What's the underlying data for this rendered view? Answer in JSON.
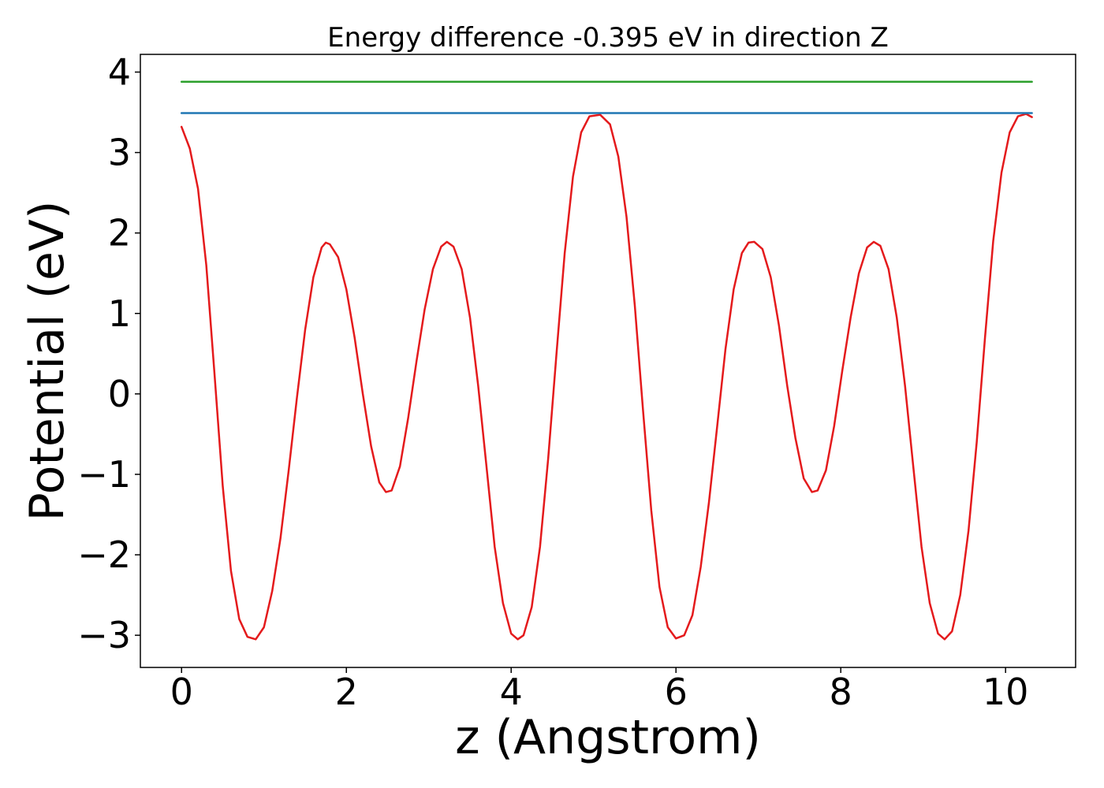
{
  "chart_data": {
    "type": "line",
    "title": "Energy difference -0.395 eV in direction Z",
    "xlabel": "z (Angstrom)",
    "ylabel": "Potential (eV)",
    "xlim": [
      -0.5,
      10.85
    ],
    "ylim": [
      -3.4,
      4.22
    ],
    "grid": false,
    "x_ticks": [
      0,
      2,
      4,
      6,
      8,
      10
    ],
    "x_tick_labels": [
      "0",
      "2",
      "4",
      "6",
      "8",
      "10"
    ],
    "y_ticks": [
      -3,
      -2,
      -1,
      0,
      1,
      2,
      3,
      4
    ],
    "y_tick_labels": [
      "−3",
      "−2",
      "−1",
      "0",
      "1",
      "2",
      "3",
      "4"
    ],
    "series": [
      {
        "color": "#e41a1c",
        "points": [
          [
            0.0,
            3.32
          ],
          [
            0.1,
            3.05
          ],
          [
            0.2,
            2.55
          ],
          [
            0.3,
            1.6
          ],
          [
            0.4,
            0.25
          ],
          [
            0.5,
            -1.15
          ],
          [
            0.6,
            -2.2
          ],
          [
            0.7,
            -2.8
          ],
          [
            0.8,
            -3.02
          ],
          [
            0.9,
            -3.05
          ],
          [
            1.0,
            -2.9
          ],
          [
            1.1,
            -2.45
          ],
          [
            1.2,
            -1.8
          ],
          [
            1.3,
            -0.95
          ],
          [
            1.4,
            -0.05
          ],
          [
            1.5,
            0.8
          ],
          [
            1.6,
            1.45
          ],
          [
            1.7,
            1.82
          ],
          [
            1.75,
            1.88
          ],
          [
            1.8,
            1.86
          ],
          [
            1.9,
            1.7
          ],
          [
            2.0,
            1.3
          ],
          [
            2.1,
            0.7
          ],
          [
            2.2,
            0.0
          ],
          [
            2.3,
            -0.65
          ],
          [
            2.4,
            -1.1
          ],
          [
            2.48,
            -1.22
          ],
          [
            2.55,
            -1.2
          ],
          [
            2.65,
            -0.9
          ],
          [
            2.75,
            -0.3
          ],
          [
            2.85,
            0.4
          ],
          [
            2.95,
            1.05
          ],
          [
            3.05,
            1.55
          ],
          [
            3.15,
            1.83
          ],
          [
            3.22,
            1.89
          ],
          [
            3.3,
            1.83
          ],
          [
            3.4,
            1.55
          ],
          [
            3.5,
            0.95
          ],
          [
            3.6,
            0.1
          ],
          [
            3.7,
            -0.9
          ],
          [
            3.8,
            -1.9
          ],
          [
            3.9,
            -2.6
          ],
          [
            4.0,
            -2.98
          ],
          [
            4.08,
            -3.05
          ],
          [
            4.15,
            -3.0
          ],
          [
            4.25,
            -2.65
          ],
          [
            4.35,
            -1.9
          ],
          [
            4.45,
            -0.8
          ],
          [
            4.55,
            0.5
          ],
          [
            4.65,
            1.75
          ],
          [
            4.75,
            2.7
          ],
          [
            4.85,
            3.25
          ],
          [
            4.95,
            3.45
          ],
          [
            5.08,
            3.47
          ],
          [
            5.2,
            3.35
          ],
          [
            5.3,
            2.95
          ],
          [
            5.4,
            2.2
          ],
          [
            5.5,
            1.1
          ],
          [
            5.6,
            -0.2
          ],
          [
            5.7,
            -1.45
          ],
          [
            5.8,
            -2.4
          ],
          [
            5.9,
            -2.9
          ],
          [
            6.0,
            -3.04
          ],
          [
            6.1,
            -3.0
          ],
          [
            6.2,
            -2.75
          ],
          [
            6.3,
            -2.15
          ],
          [
            6.4,
            -1.35
          ],
          [
            6.5,
            -0.4
          ],
          [
            6.6,
            0.55
          ],
          [
            6.7,
            1.3
          ],
          [
            6.8,
            1.75
          ],
          [
            6.88,
            1.88
          ],
          [
            6.95,
            1.89
          ],
          [
            7.05,
            1.8
          ],
          [
            7.15,
            1.45
          ],
          [
            7.25,
            0.85
          ],
          [
            7.35,
            0.1
          ],
          [
            7.45,
            -0.55
          ],
          [
            7.55,
            -1.05
          ],
          [
            7.65,
            -1.22
          ],
          [
            7.72,
            -1.2
          ],
          [
            7.82,
            -0.95
          ],
          [
            7.92,
            -0.4
          ],
          [
            8.02,
            0.3
          ],
          [
            8.12,
            0.95
          ],
          [
            8.22,
            1.5
          ],
          [
            8.32,
            1.82
          ],
          [
            8.4,
            1.89
          ],
          [
            8.48,
            1.84
          ],
          [
            8.58,
            1.55
          ],
          [
            8.68,
            0.95
          ],
          [
            8.78,
            0.1
          ],
          [
            8.88,
            -0.9
          ],
          [
            8.98,
            -1.9
          ],
          [
            9.08,
            -2.6
          ],
          [
            9.18,
            -2.98
          ],
          [
            9.26,
            -3.05
          ],
          [
            9.35,
            -2.95
          ],
          [
            9.45,
            -2.5
          ],
          [
            9.55,
            -1.7
          ],
          [
            9.65,
            -0.6
          ],
          [
            9.75,
            0.7
          ],
          [
            9.85,
            1.9
          ],
          [
            9.95,
            2.75
          ],
          [
            10.05,
            3.25
          ],
          [
            10.15,
            3.45
          ],
          [
            10.25,
            3.48
          ],
          [
            10.32,
            3.44
          ]
        ]
      },
      {
        "color": "#1f77b4",
        "points": [
          [
            0.0,
            3.49
          ],
          [
            10.32,
            3.49
          ]
        ]
      },
      {
        "color": "#2ca02c",
        "points": [
          [
            0.0,
            3.88
          ],
          [
            10.32,
            3.88
          ]
        ]
      }
    ]
  }
}
